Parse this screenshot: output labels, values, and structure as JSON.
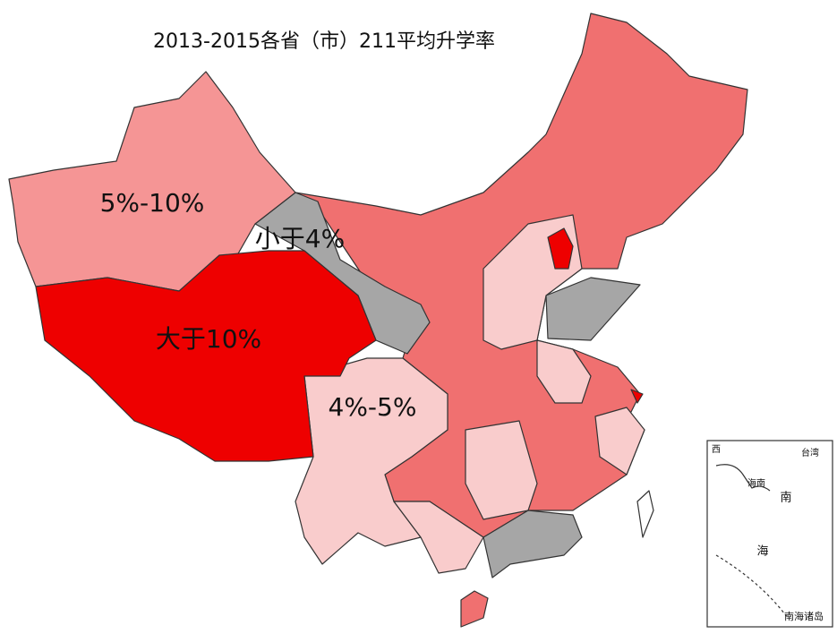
{
  "title": "2013-2015各省（市）211平均升学率",
  "regions": [
    {
      "label": "5%-10%",
      "color": "#f59595"
    },
    {
      "label": "小于4%",
      "color": "#a6a6a6"
    },
    {
      "label": "大于10%",
      "color": "#ee0000"
    },
    {
      "label": "4%-5%",
      "color": "#f9cccc"
    }
  ],
  "base_color": "#f07070",
  "inset": {
    "labels": [
      "西",
      "台湾",
      "海南",
      "南",
      "海"
    ],
    "title": "南海诸岛"
  }
}
